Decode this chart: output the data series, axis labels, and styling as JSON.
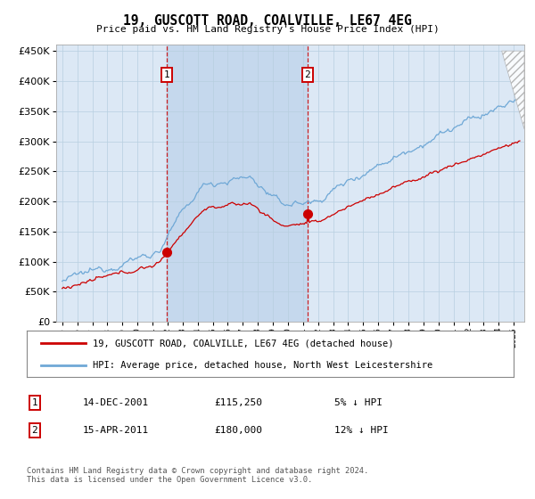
{
  "title": "19, GUSCOTT ROAD, COALVILLE, LE67 4EG",
  "subtitle": "Price paid vs. HM Land Registry's House Price Index (HPI)",
  "legend_line1": "19, GUSCOTT ROAD, COALVILLE, LE67 4EG (detached house)",
  "legend_line2": "HPI: Average price, detached house, North West Leicestershire",
  "sale1_date_label": "14-DEC-2001",
  "sale1_price_label": "£115,250",
  "sale1_pct_label": "5% ↓ HPI",
  "sale2_date_label": "15-APR-2011",
  "sale2_price_label": "£180,000",
  "sale2_pct_label": "12% ↓ HPI",
  "sale1_year": 2001.96,
  "sale1_price": 115250,
  "sale2_year": 2011.29,
  "sale2_price": 180000,
  "hpi_color": "#6fa8d6",
  "price_color": "#cc0000",
  "bg_color": "#ffffff",
  "plot_bg_color": "#dce8f5",
  "shade_color": "#c5d8ed",
  "grid_color": "#b8cfe0",
  "dashed_color": "#cc0000",
  "footer": "Contains HM Land Registry data © Crown copyright and database right 2024.\nThis data is licensed under the Open Government Licence v3.0.",
  "ylim": [
    0,
    460000
  ],
  "yticks": [
    0,
    50000,
    100000,
    150000,
    200000,
    250000,
    300000,
    350000,
    400000,
    450000
  ],
  "seed": 12345
}
